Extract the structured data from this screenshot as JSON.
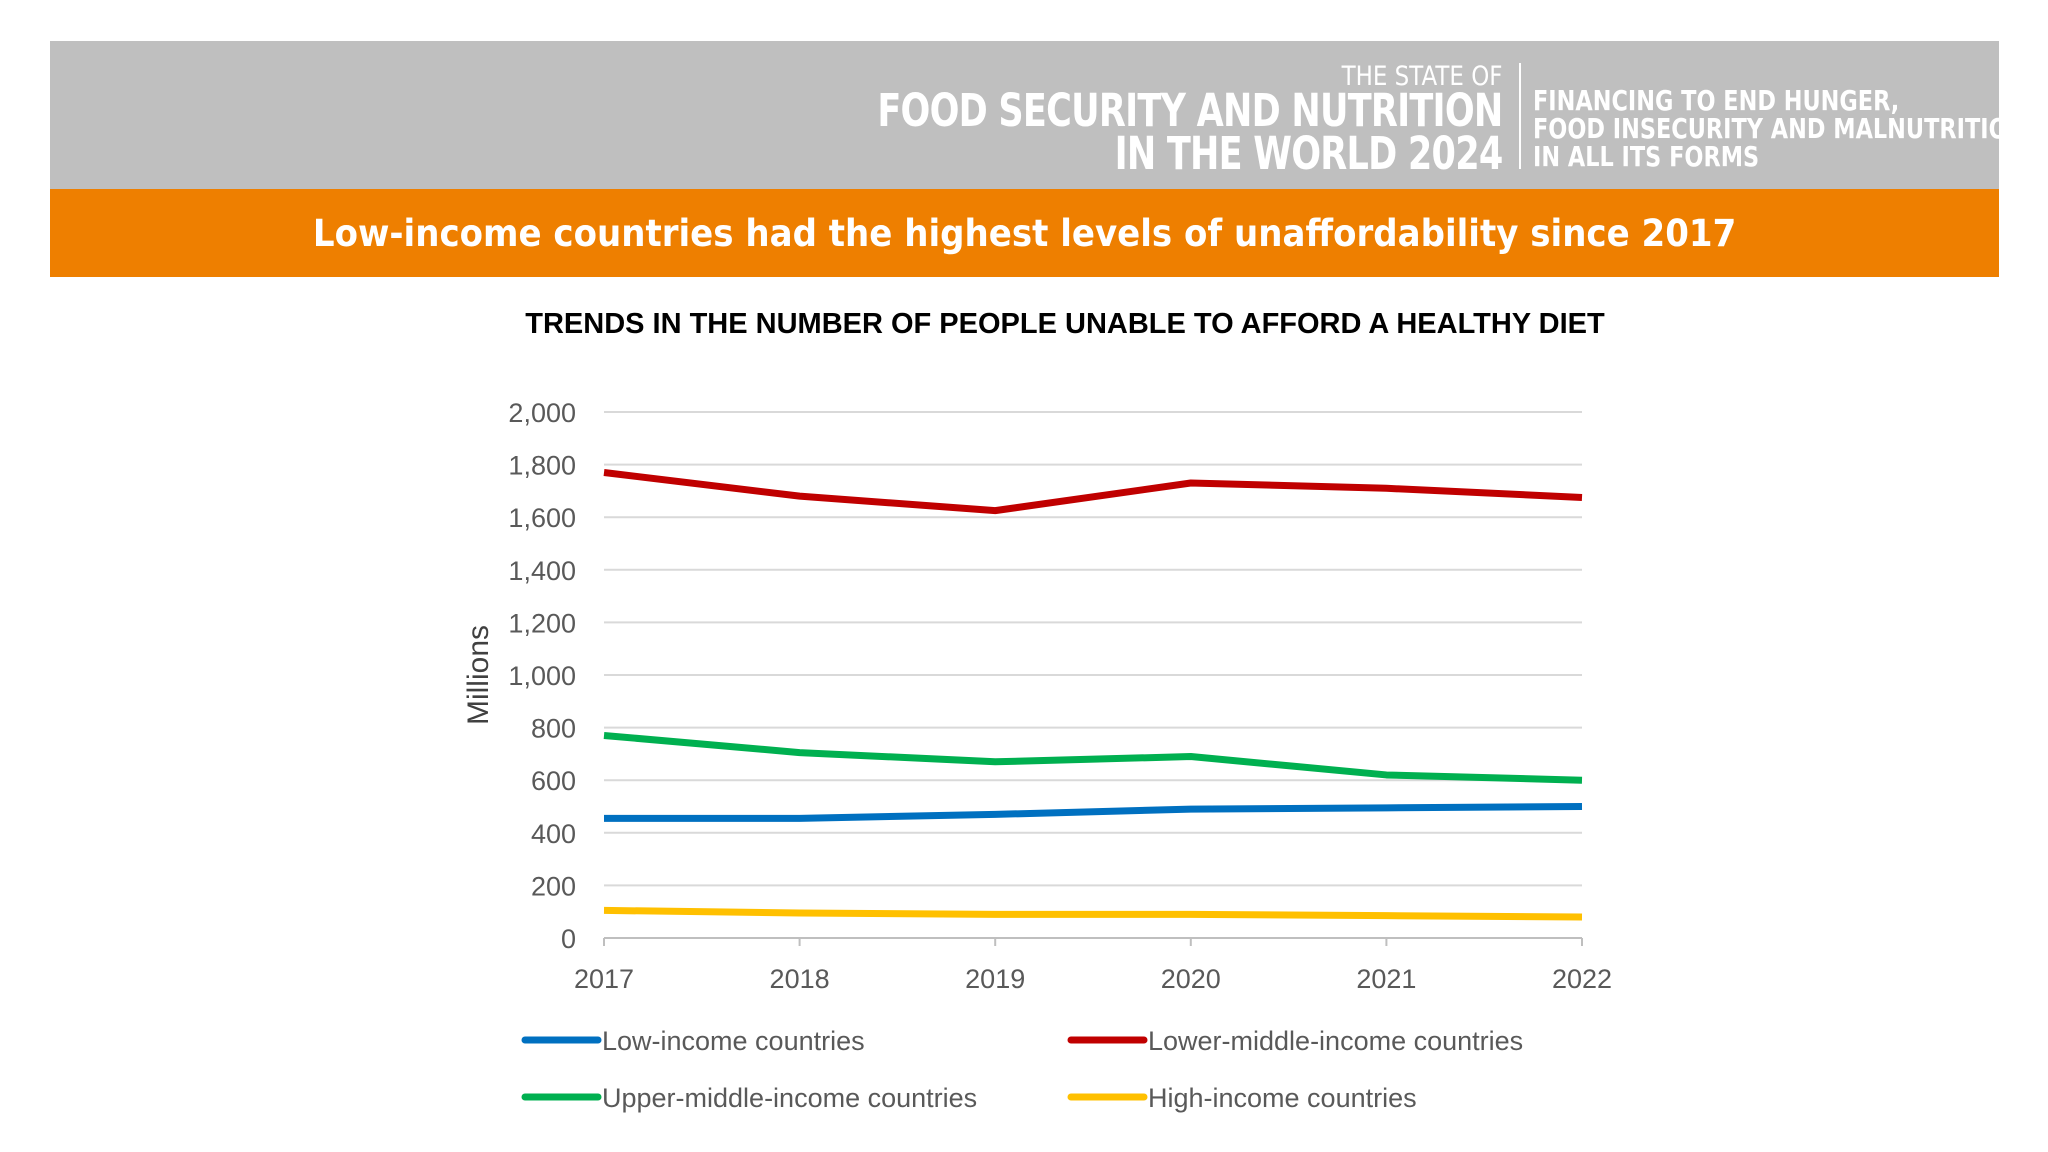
{
  "header": {
    "report_line1": "THE STATE OF",
    "report_line2": "FOOD SECURITY AND NUTRITION",
    "report_line3": "IN THE WORLD 2024",
    "subtitle_line1": "FINANCING TO END HUNGER,",
    "subtitle_line2": "FOOD INSECURITY AND MALNUTRITION",
    "subtitle_line3": "IN ALL ITS FORMS",
    "banner_color": "#bfbfbf",
    "headline": "Low-income countries had the highest levels of unaffordability since 2017",
    "headline_color": "#ee7f00"
  },
  "chart_data": {
    "type": "line",
    "title": "TRENDS IN THE NUMBER OF PEOPLE UNABLE TO AFFORD A HEALTHY DIET",
    "xlabel": "",
    "ylabel": "Millions",
    "x": [
      "2017",
      "2018",
      "2019",
      "2020",
      "2021",
      "2022"
    ],
    "ylim": [
      0,
      2000
    ],
    "yticks": [
      0,
      200,
      400,
      600,
      800,
      1000,
      1200,
      1400,
      1600,
      1800,
      2000
    ],
    "ytick_labels": [
      "0",
      "200",
      "400",
      "600",
      "800",
      "1,000",
      "1,200",
      "1,400",
      "1,600",
      "1,800",
      "2,000"
    ],
    "grid": true,
    "legend_position": "bottom",
    "series": [
      {
        "name": "Low-income countries",
        "color": "#0070c0",
        "values": [
          455,
          455,
          470,
          490,
          495,
          500
        ]
      },
      {
        "name": "Lower-middle-income countries",
        "color": "#c00000",
        "values": [
          1770,
          1680,
          1625,
          1730,
          1710,
          1675
        ]
      },
      {
        "name": "Upper-middle-income countries",
        "color": "#00b050",
        "values": [
          770,
          705,
          670,
          690,
          620,
          600
        ]
      },
      {
        "name": "High-income countries",
        "color": "#ffc000",
        "values": [
          105,
          95,
          90,
          90,
          85,
          80
        ]
      }
    ]
  }
}
